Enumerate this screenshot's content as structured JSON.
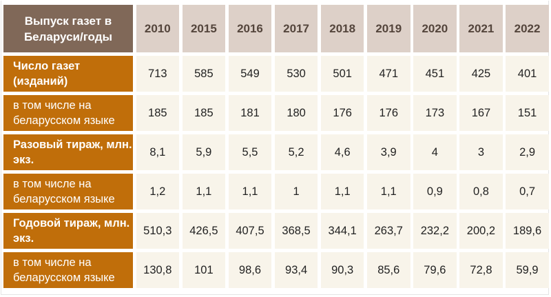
{
  "chart_data": {
    "type": "table",
    "title": "Выпуск газет в Беларуси/годы",
    "columns": [
      "2010",
      "2015",
      "2016",
      "2017",
      "2018",
      "2019",
      "2020",
      "2021",
      "2022"
    ],
    "rows": [
      {
        "label": "Число газет (изданий)",
        "bold": true,
        "values": [
          "713",
          "585",
          "549",
          "530",
          "501",
          "471",
          "451",
          "425",
          "401"
        ]
      },
      {
        "label": "в том числе на беларусском языке",
        "bold": false,
        "values": [
          "185",
          "185",
          "181",
          "180",
          "176",
          "176",
          "173",
          "167",
          "151"
        ]
      },
      {
        "label": "Разовый тираж, млн. экз.",
        "bold": true,
        "values": [
          "8,1",
          "5,9",
          "5,5",
          "5,2",
          "4,6",
          "3,9",
          "4",
          "3",
          "2,9"
        ]
      },
      {
        "label": "в том числе на беларусском языке",
        "bold": false,
        "values": [
          "1,2",
          "1,1",
          "1,1",
          "1",
          "1,1",
          "1,1",
          "0,9",
          "0,8",
          "0,7"
        ]
      },
      {
        "label": "Годовой тираж, млн. экз.",
        "bold": true,
        "values": [
          "510,3",
          "426,5",
          "407,5",
          "368,5",
          "344,1",
          "263,7",
          "232,2",
          "200,2",
          "189,6"
        ]
      },
      {
        "label": "в том числе на беларусском языке",
        "bold": false,
        "values": [
          "130,8",
          "101",
          "98,6",
          "93,4",
          "90,3",
          "85,6",
          "79,6",
          "72,8",
          "59,9"
        ]
      }
    ],
    "colors": {
      "corner": "#806858",
      "year_header": "#ddd0c8",
      "row_label": "#c06e0a",
      "cell": "#f8f4ea"
    }
  }
}
